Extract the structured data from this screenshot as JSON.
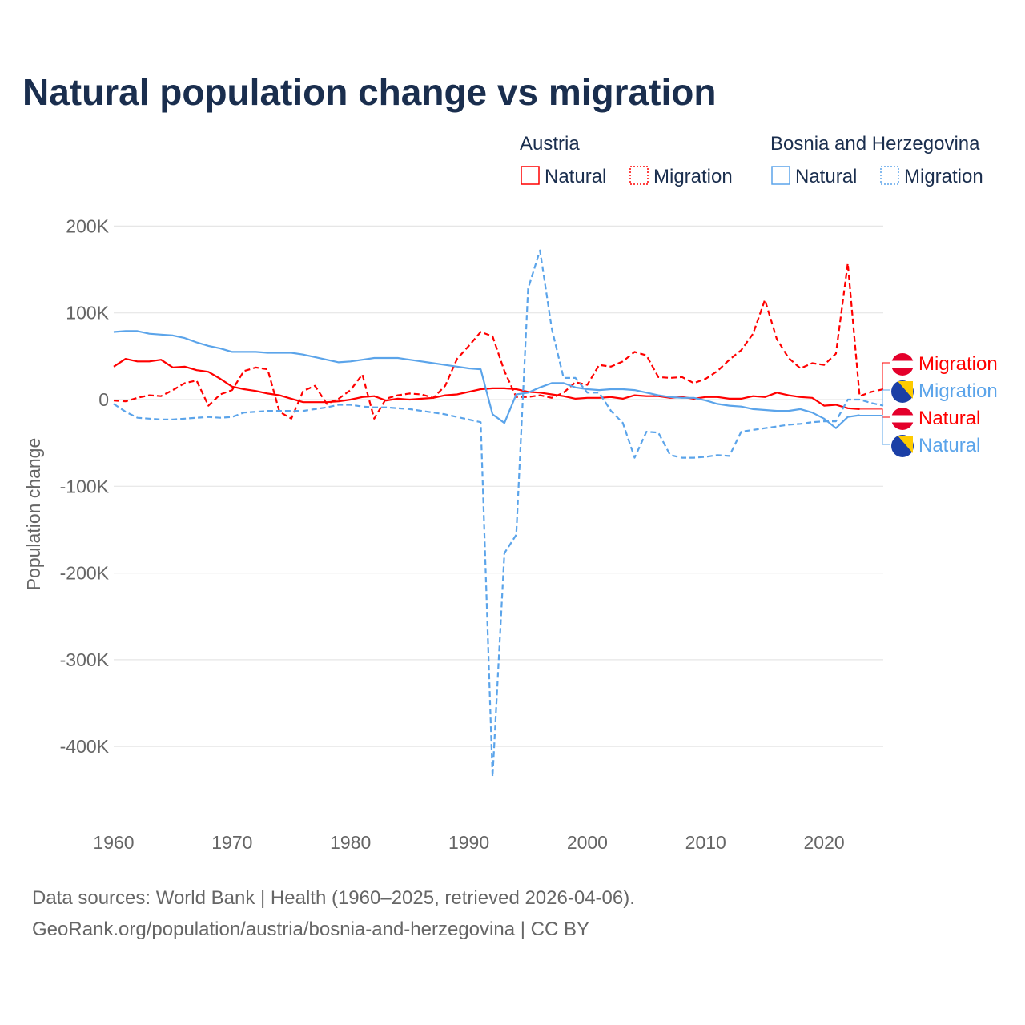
{
  "title": "Natural population change vs migration",
  "legend": {
    "groups": [
      {
        "name": "Austria",
        "items": [
          "Natural",
          "Migration"
        ]
      },
      {
        "name": "Bosnia and Herzegovina",
        "items": [
          "Natural",
          "Migration"
        ]
      }
    ]
  },
  "source_line1": "Data sources: World Bank | Health (1960–2025, retrieved 2026-04-06).",
  "source_line2": "GeoRank.org/population/austria/bosnia-and-herzegovina | CC BY",
  "colors": {
    "austria": "#ff0000",
    "bosnia": "#5ba4ea",
    "title": "#1a2e4e"
  },
  "chart_data": {
    "type": "line",
    "title": "Natural population change vs migration",
    "xlabel": "",
    "ylabel": "Population change",
    "xlim": [
      1960,
      2025
    ],
    "ylim": [
      -450000,
      200000
    ],
    "x_ticks": [
      "1960",
      "1970",
      "1980",
      "1990",
      "2000",
      "2010",
      "2020"
    ],
    "y_ticks": [
      {
        "v": 200,
        "label": "200K"
      },
      {
        "v": 100,
        "label": "100K"
      },
      {
        "v": 0,
        "label": "0"
      },
      {
        "v": -100,
        "label": "-100K"
      },
      {
        "v": -200,
        "label": "-200K"
      },
      {
        "v": -300,
        "label": "-300K"
      },
      {
        "v": -400,
        "label": "-400K"
      }
    ],
    "units": "thousands",
    "series": [
      {
        "name": "Austria Natural",
        "label": "Natural",
        "country": "Austria",
        "color": "#ff0000",
        "dashed": false,
        "start": 1960,
        "values": [
          38,
          47,
          44,
          44,
          46,
          37,
          38,
          34,
          32,
          24,
          15,
          12,
          10,
          7,
          5,
          1,
          -3,
          -3,
          -3,
          -2,
          0,
          3,
          4,
          -1,
          1,
          0,
          1,
          2,
          5,
          6,
          9,
          12,
          13,
          13,
          12,
          9,
          8,
          6,
          4,
          1,
          2,
          2,
          3,
          1,
          5,
          4,
          4,
          2,
          3,
          1,
          3,
          3,
          1,
          1,
          4,
          3,
          8,
          5,
          3,
          2,
          -7,
          -6,
          -10,
          -11
        ]
      },
      {
        "name": "Austria Migration",
        "label": "Migration",
        "country": "Austria",
        "color": "#ff0000",
        "dashed": true,
        "start": 1960,
        "values": [
          -1,
          -2,
          2,
          5,
          4,
          11,
          19,
          22,
          -7,
          6,
          11,
          33,
          37,
          35,
          -14,
          -22,
          10,
          16,
          -5,
          1,
          11,
          29,
          -22,
          1,
          5,
          7,
          6,
          2,
          16,
          47,
          62,
          78,
          73,
          33,
          3,
          3,
          5,
          2,
          8,
          20,
          17,
          40,
          38,
          44,
          55,
          51,
          26,
          25,
          26,
          19,
          24,
          33,
          46,
          57,
          76,
          115,
          70,
          48,
          36,
          42,
          40,
          53,
          157,
          4,
          9,
          12
        ]
      },
      {
        "name": "Bosnia and Herzegovina Natural",
        "label": "Natural",
        "country": "Bosnia and Herzegovina",
        "color": "#5ba4ea",
        "dashed": false,
        "start": 1960,
        "values": [
          78,
          79,
          79,
          76,
          75,
          74,
          71,
          66,
          62,
          59,
          55,
          55,
          55,
          54,
          54,
          54,
          52,
          49,
          46,
          43,
          44,
          46,
          48,
          48,
          48,
          46,
          44,
          42,
          40,
          38,
          36,
          35,
          -17,
          -27,
          6,
          8,
          14,
          19,
          19,
          14,
          12,
          11,
          12,
          12,
          11,
          8,
          5,
          3,
          2,
          2,
          -1,
          -5,
          -7,
          -8,
          -11,
          -12,
          -13,
          -13,
          -11,
          -15,
          -22,
          -33,
          -20,
          -18
        ]
      },
      {
        "name": "Bosnia and Herzegovina Migration",
        "label": "Migration",
        "country": "Bosnia and Herzegovina",
        "color": "#5ba4ea",
        "dashed": true,
        "start": 1960,
        "values": [
          -5,
          -14,
          -21,
          -22,
          -23,
          -23,
          -22,
          -21,
          -20,
          -21,
          -20,
          -15,
          -14,
          -13,
          -13,
          -13,
          -13,
          -11,
          -9,
          -6,
          -6,
          -8,
          -9,
          -9,
          -10,
          -11,
          -13,
          -15,
          -17,
          -20,
          -23,
          -26,
          -435,
          -177,
          -156,
          128,
          172,
          82,
          25,
          25,
          8,
          8,
          -13,
          -27,
          -67,
          -37,
          -38,
          -64,
          -67,
          -67,
          -66,
          -64,
          -65,
          -37,
          -35,
          -33,
          -31,
          -29,
          -28,
          -26,
          -25,
          -25,
          0,
          0,
          -4,
          -7
        ]
      }
    ]
  }
}
